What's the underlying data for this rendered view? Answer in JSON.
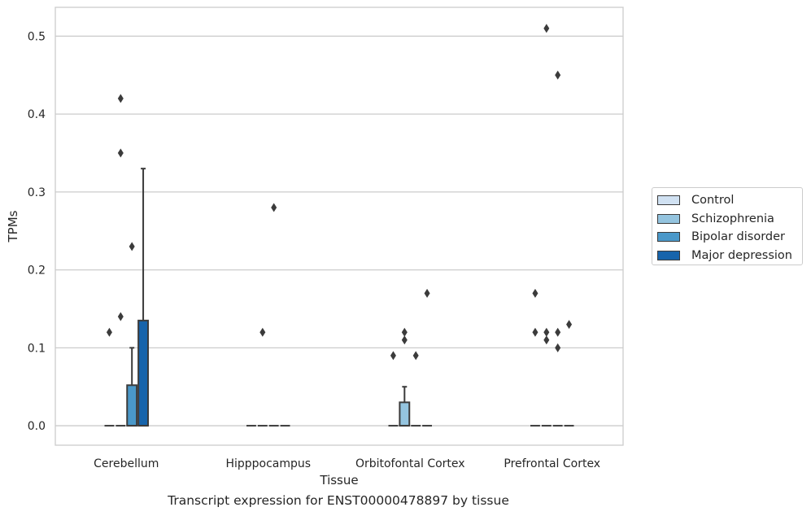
{
  "chart_data": {
    "type": "box",
    "xlabel": "Tissue",
    "ylabel": "TPMs",
    "caption": "Transcript expression for ENST00000478897 by tissue",
    "ylim": [
      -0.025,
      0.537
    ],
    "yticks": [
      0.0,
      0.1,
      0.2,
      0.3,
      0.4,
      0.5
    ],
    "ytick_labels": [
      "0.0",
      "0.1",
      "0.2",
      "0.3",
      "0.4",
      "0.5"
    ],
    "categories": [
      "Cerebellum",
      "Hipppocampus",
      "Orbitofontal Cortex",
      "Prefrontal Cortex"
    ],
    "series": [
      {
        "name": "Control",
        "color": "#d0e1f2"
      },
      {
        "name": "Schizophrenia",
        "color": "#94c4df"
      },
      {
        "name": "Bipolar disorder",
        "color": "#4a98c9"
      },
      {
        "name": "Major depression",
        "color": "#1764ab"
      }
    ],
    "boxes": [
      {
        "category": 0,
        "series": 0,
        "q1": 0,
        "median": 0,
        "q3": 0,
        "whislo": 0,
        "whishi": 0,
        "fliers": [
          0.12
        ]
      },
      {
        "category": 0,
        "series": 1,
        "q1": 0,
        "median": 0,
        "q3": 0,
        "whislo": 0,
        "whishi": 0,
        "fliers": [
          0.42,
          0.35,
          0.14
        ]
      },
      {
        "category": 0,
        "series": 2,
        "q1": 0,
        "median": 0,
        "q3": 0.052,
        "whislo": 0,
        "whishi": 0.1,
        "fliers": [
          0.23
        ]
      },
      {
        "category": 0,
        "series": 3,
        "q1": 0,
        "median": 0,
        "q3": 0.135,
        "whislo": 0,
        "whishi": 0.33,
        "fliers": []
      },
      {
        "category": 1,
        "series": 0,
        "q1": 0,
        "median": 0,
        "q3": 0,
        "whislo": 0,
        "whishi": 0,
        "fliers": []
      },
      {
        "category": 1,
        "series": 1,
        "q1": 0,
        "median": 0,
        "q3": 0,
        "whislo": 0,
        "whishi": 0,
        "fliers": [
          0.12
        ]
      },
      {
        "category": 1,
        "series": 2,
        "q1": 0,
        "median": 0,
        "q3": 0,
        "whislo": 0,
        "whishi": 0,
        "fliers": [
          0.28
        ]
      },
      {
        "category": 1,
        "series": 3,
        "q1": 0,
        "median": 0,
        "q3": 0,
        "whislo": 0,
        "whishi": 0,
        "fliers": []
      },
      {
        "category": 2,
        "series": 0,
        "q1": 0,
        "median": 0,
        "q3": 0,
        "whislo": 0,
        "whishi": 0,
        "fliers": [
          0.09
        ]
      },
      {
        "category": 2,
        "series": 1,
        "q1": 0,
        "median": 0,
        "q3": 0.03,
        "whislo": 0,
        "whishi": 0.05,
        "fliers": [
          0.12,
          0.11
        ]
      },
      {
        "category": 2,
        "series": 2,
        "q1": 0,
        "median": 0,
        "q3": 0,
        "whislo": 0,
        "whishi": 0,
        "fliers": [
          0.09
        ]
      },
      {
        "category": 2,
        "series": 3,
        "q1": 0,
        "median": 0,
        "q3": 0,
        "whislo": 0,
        "whishi": 0,
        "fliers": [
          0.17
        ]
      },
      {
        "category": 3,
        "series": 0,
        "q1": 0,
        "median": 0,
        "q3": 0,
        "whislo": 0,
        "whishi": 0,
        "fliers": [
          0.17,
          0.12
        ]
      },
      {
        "category": 3,
        "series": 1,
        "q1": 0,
        "median": 0,
        "q3": 0,
        "whislo": 0,
        "whishi": 0,
        "fliers": [
          0.51,
          0.12,
          0.11
        ]
      },
      {
        "category": 3,
        "series": 2,
        "q1": 0,
        "median": 0,
        "q3": 0,
        "whislo": 0,
        "whishi": 0,
        "fliers": [
          0.45,
          0.12,
          0.1
        ]
      },
      {
        "category": 3,
        "series": 3,
        "q1": 0,
        "median": 0,
        "q3": 0,
        "whislo": 0,
        "whishi": 0,
        "fliers": [
          0.13
        ]
      }
    ],
    "grid": true,
    "legend_position": "right"
  }
}
